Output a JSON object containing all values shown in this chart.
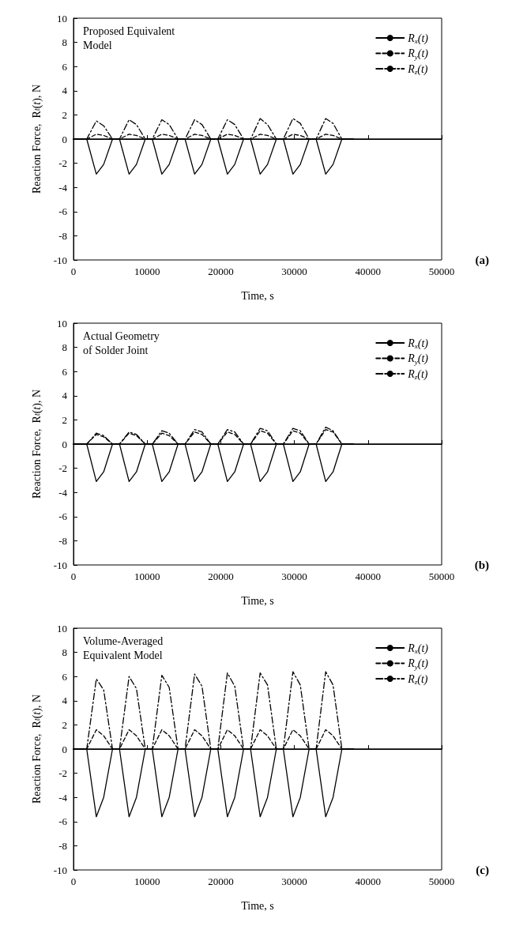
{
  "chart_data": [
    {
      "type": "line",
      "xlabel": "Time, s",
      "ylabel": "Reaction Force,  R$_{t}$(t), N",
      "annotations": [
        "Proposed Equivalent\nModel",
        "(a)"
      ],
      "legend": "top right",
      "marker": "none",
      "grid": false,
      "xlim": [
        0,
        50000
      ],
      "xticks": [
        0,
        10000,
        20000,
        30000,
        40000,
        50000
      ],
      "ylim": [
        -10,
        10
      ],
      "yticks": [
        -10,
        -8,
        -6,
        -4,
        -2,
        0,
        2,
        4,
        6,
        8,
        10
      ],
      "ref_lines": [
        {
          "axis": "y",
          "value": 0,
          "color": "#000000"
        }
      ],
      "x": [
        0,
        1800,
        3100,
        4100,
        5300,
        6250,
        7550,
        8550,
        9750,
        10700,
        12000,
        13000,
        14200,
        15150,
        16450,
        17450,
        18650,
        19600,
        20900,
        21900,
        23100,
        24050,
        25350,
        26350,
        27550,
        28500,
        29800,
        30800,
        32000,
        32950,
        34250,
        35250,
        36450,
        38000
      ],
      "series": [
        {
          "name": "R$_{x}$(t)",
          "color": "#000000",
          "line_style": "solid",
          "values": [
            0,
            0,
            -2.9,
            -2.1,
            0,
            0,
            -2.9,
            -2.1,
            0,
            0,
            -2.9,
            -2.1,
            0,
            0,
            -2.9,
            -2.1,
            0,
            0,
            -2.9,
            -2.1,
            0,
            0,
            -2.9,
            -2.1,
            0,
            0,
            -2.9,
            -2.1,
            0,
            0,
            -2.9,
            -2.1,
            0,
            0
          ]
        },
        {
          "name": "R$_{y}$(t)",
          "color": "#000000",
          "line_style": "dashed",
          "values": [
            0,
            0,
            0.4,
            0.3,
            0,
            0,
            0.4,
            0.3,
            0,
            0,
            0.4,
            0.3,
            0,
            0,
            0.4,
            0.3,
            0,
            0,
            0.4,
            0.3,
            0,
            0,
            0.4,
            0.3,
            0,
            0,
            0.4,
            0.3,
            0,
            0,
            0.4,
            0.3,
            0,
            0
          ]
        },
        {
          "name": "R$_{z}$(t)",
          "color": "#000000",
          "line_style": "dashdot",
          "values": [
            0,
            0,
            1.5,
            1.1,
            0,
            0,
            1.6,
            1.2,
            0,
            0,
            1.6,
            1.2,
            0,
            0,
            1.6,
            1.2,
            0,
            0,
            1.6,
            1.2,
            0,
            0,
            1.7,
            1.2,
            0,
            0,
            1.7,
            1.3,
            0,
            0,
            1.7,
            1.3,
            0,
            0
          ]
        }
      ]
    },
    {
      "type": "line",
      "xlabel": "Time, s",
      "ylabel": "Reaction Force,  R$_{t}$(t), N",
      "annotations": [
        "Actual Geometry\nof Solder Joint",
        "(b)"
      ],
      "legend": "top right",
      "marker": "none",
      "grid": false,
      "xlim": [
        0,
        50000
      ],
      "xticks": [
        0,
        10000,
        20000,
        30000,
        40000,
        50000
      ],
      "ylim": [
        -10,
        10
      ],
      "yticks": [
        -10,
        -8,
        -6,
        -4,
        -2,
        0,
        2,
        4,
        6,
        8,
        10
      ],
      "ref_lines": [
        {
          "axis": "y",
          "value": 0,
          "color": "#000000"
        }
      ],
      "x": [
        0,
        1800,
        3100,
        4100,
        5300,
        6250,
        7550,
        8550,
        9750,
        10700,
        12000,
        13000,
        14200,
        15150,
        16450,
        17450,
        18650,
        19600,
        20900,
        21900,
        23100,
        24050,
        25350,
        26350,
        27550,
        28500,
        29800,
        30800,
        32000,
        32950,
        34250,
        35250,
        36450,
        38000
      ],
      "series": [
        {
          "name": "R$_{x}$(t)",
          "color": "#000000",
          "line_style": "solid",
          "values": [
            0,
            0,
            -3.1,
            -2.3,
            0,
            0,
            -3.1,
            -2.3,
            0,
            0,
            -3.1,
            -2.3,
            0,
            0,
            -3.1,
            -2.3,
            0,
            0,
            -3.1,
            -2.3,
            0,
            0,
            -3.1,
            -2.3,
            0,
            0,
            -3.1,
            -2.3,
            0,
            0,
            -3.1,
            -2.3,
            0,
            0
          ]
        },
        {
          "name": "R$_{y}$(t)",
          "color": "#000000",
          "line_style": "dashed",
          "values": [
            0,
            0,
            0.8,
            0.6,
            0,
            0,
            0.9,
            0.7,
            0,
            0,
            0.9,
            0.7,
            0,
            0,
            1.0,
            0.8,
            0,
            0,
            1.0,
            0.8,
            0,
            0,
            1.1,
            0.9,
            0,
            0,
            1.1,
            0.9,
            0,
            0,
            1.2,
            1.0,
            0,
            0
          ]
        },
        {
          "name": "R$_{z}$(t)",
          "color": "#000000",
          "line_style": "dashdot",
          "values": [
            0,
            0,
            0.9,
            0.7,
            0,
            0,
            1.0,
            0.8,
            0,
            0,
            1.1,
            0.9,
            0,
            0,
            1.2,
            1.0,
            0,
            0,
            1.2,
            1.0,
            0,
            0,
            1.3,
            1.1,
            0,
            0,
            1.3,
            1.1,
            0,
            0,
            1.4,
            1.1,
            0,
            0
          ]
        }
      ]
    },
    {
      "type": "line",
      "xlabel": "Time, s",
      "ylabel": "Reaction Force,  R$_{t}$(t), N",
      "annotations": [
        "Volume-Averaged\nEquivalent Model",
        "(c)"
      ],
      "legend": "top right",
      "marker": "none",
      "grid": false,
      "xlim": [
        0,
        50000
      ],
      "xticks": [
        0,
        10000,
        20000,
        30000,
        40000,
        50000
      ],
      "ylim": [
        -10,
        10
      ],
      "yticks": [
        -10,
        -8,
        -6,
        -4,
        -2,
        0,
        2,
        4,
        6,
        8,
        10
      ],
      "ref_lines": [
        {
          "axis": "y",
          "value": 0,
          "color": "#000000"
        }
      ],
      "x": [
        0,
        1800,
        3100,
        4100,
        5300,
        6250,
        7550,
        8550,
        9750,
        10700,
        12000,
        13000,
        14200,
        15150,
        16450,
        17450,
        18650,
        19600,
        20900,
        21900,
        23100,
        24050,
        25350,
        26350,
        27550,
        28500,
        29800,
        30800,
        32000,
        32950,
        34250,
        35250,
        36450,
        38000
      ],
      "series": [
        {
          "name": "R$_{x}$(t)",
          "color": "#000000",
          "line_style": "solid",
          "values": [
            0,
            0,
            -5.6,
            -4.0,
            0,
            0,
            -5.6,
            -4.0,
            0,
            0,
            -5.6,
            -4.0,
            0,
            0,
            -5.6,
            -4.0,
            0,
            0,
            -5.6,
            -4.0,
            0,
            0,
            -5.6,
            -4.0,
            0,
            0,
            -5.6,
            -4.0,
            0,
            0,
            -5.6,
            -4.0,
            0,
            0
          ]
        },
        {
          "name": "R$_{y}$(t)",
          "color": "#000000",
          "line_style": "dashed",
          "values": [
            0,
            0,
            1.6,
            1.1,
            0,
            0,
            1.6,
            1.1,
            0,
            0,
            1.6,
            1.1,
            0,
            0,
            1.6,
            1.1,
            0,
            0,
            1.6,
            1.1,
            0,
            0,
            1.6,
            1.1,
            0,
            0,
            1.6,
            1.1,
            0,
            0,
            1.6,
            1.1,
            0,
            0
          ]
        },
        {
          "name": "R$_{z}$(t)",
          "color": "#000000",
          "line_style": "dashdot",
          "values": [
            0,
            0,
            5.8,
            4.9,
            0,
            0,
            6.0,
            5.0,
            0,
            0,
            6.1,
            5.1,
            0,
            0,
            6.2,
            5.2,
            0,
            0,
            6.3,
            5.2,
            0,
            0,
            6.3,
            5.3,
            0,
            0,
            6.4,
            5.3,
            0,
            0,
            6.4,
            5.3,
            0,
            0
          ]
        }
      ]
    }
  ]
}
